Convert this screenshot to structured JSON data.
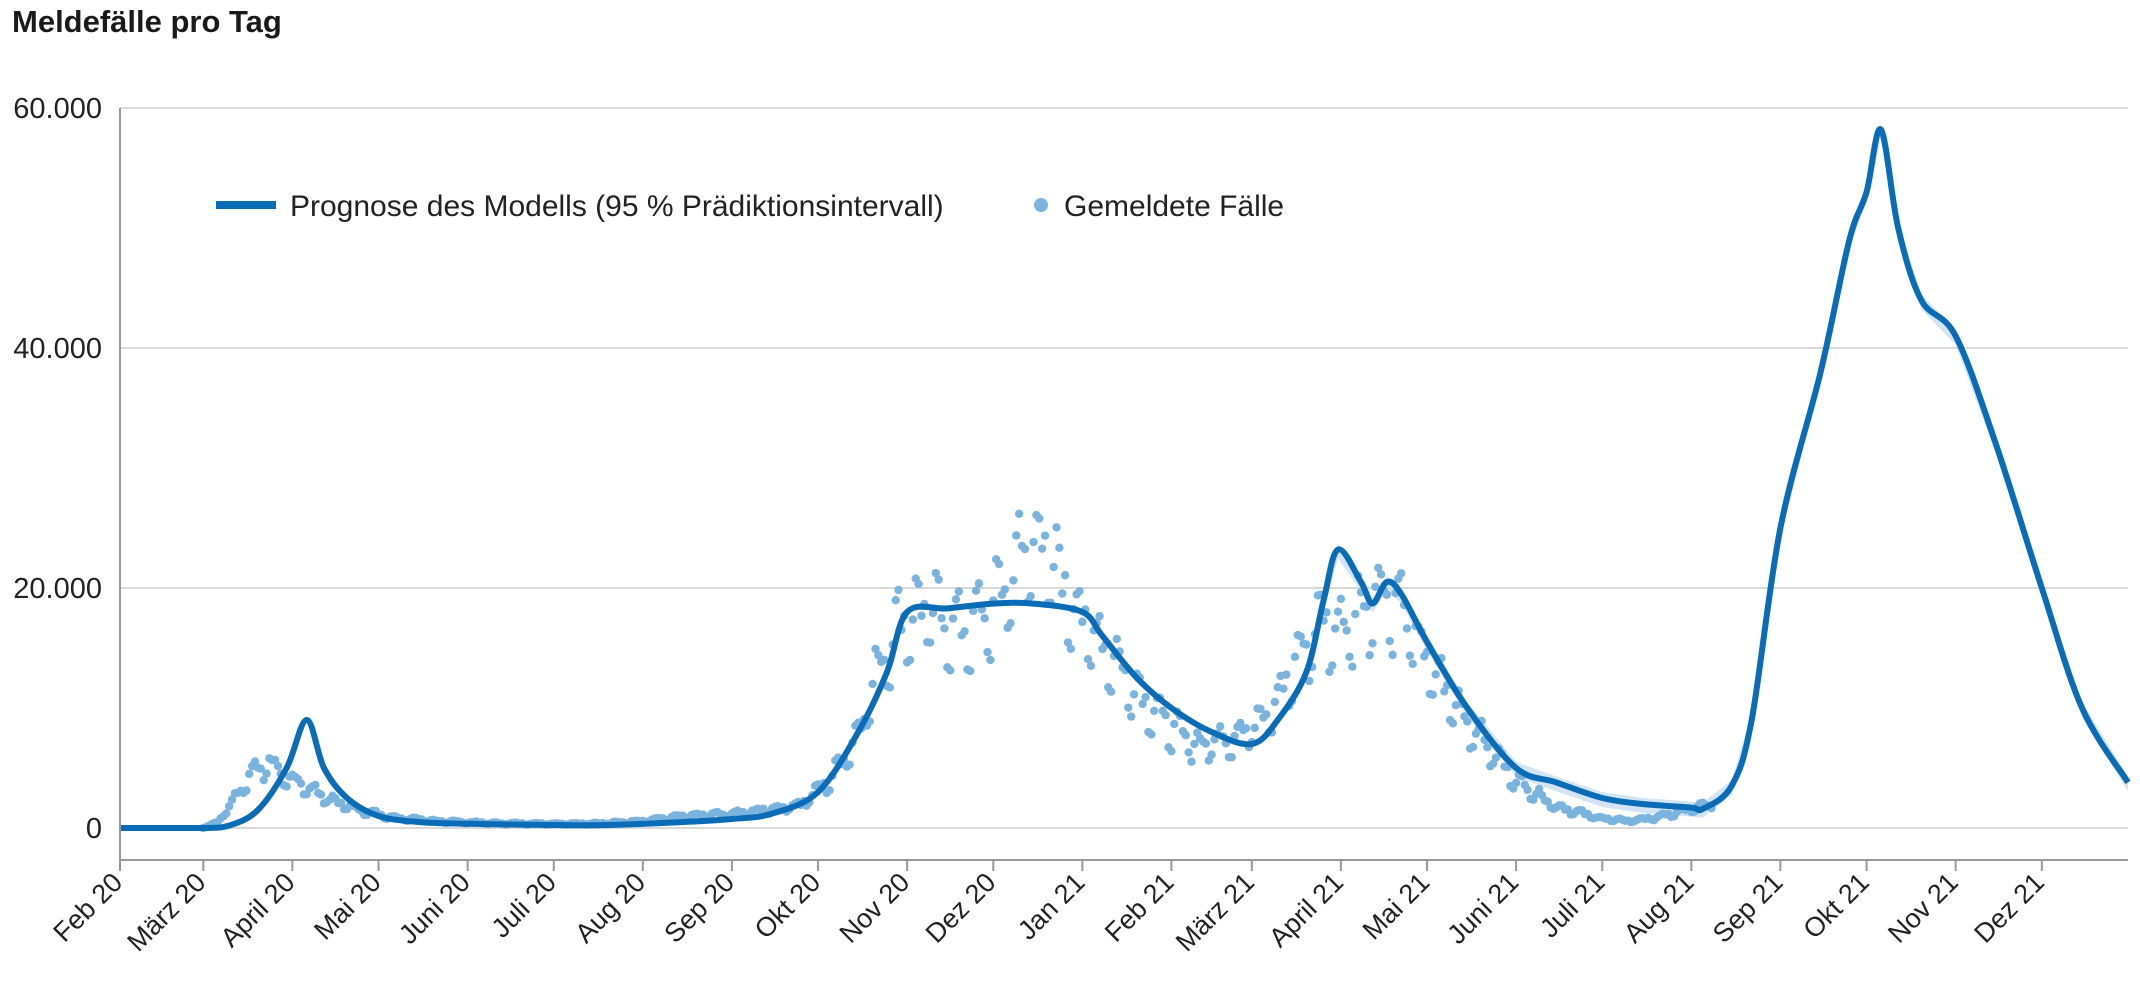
{
  "title": "Meldefälle pro Tag",
  "colors": {
    "model": "#0a6cb6",
    "reported": "#7ab3de",
    "band": "#c8dff1",
    "grid": "#d9d9d9"
  },
  "chart_data": {
    "type": "line",
    "title": "Meldefälle pro Tag",
    "ylim": [
      0,
      60000
    ],
    "y_ticks": [
      0,
      20000,
      40000,
      60000
    ],
    "y_tick_labels": [
      "0",
      "20.000",
      "40.000",
      "60.000"
    ],
    "x_tick_labels": [
      "Feb 20",
      "März 20",
      "April 20",
      "Mai 20",
      "Juni 20",
      "Juli 20",
      "Aug 20",
      "Sep 20",
      "Okt 20",
      "Nov 20",
      "Dez 20",
      "Jan 21",
      "Feb 21",
      "März 21",
      "April 21",
      "Mai 21",
      "Juni 21",
      "Juli 21",
      "Aug 21",
      "Sep 21",
      "Okt 21",
      "Nov 21",
      "Dez 21"
    ],
    "x_range": [
      "2020-02-01",
      "2021-12-31"
    ],
    "grid": "horizontal",
    "legend": "top-left",
    "legend_entries": [
      "Prognose des Modells (95 % Prädiktionsintervall)",
      "Gemeldete Fälle"
    ],
    "series": [
      {
        "name": "Prognose des Modells (95 % Prädiktionsintervall)",
        "kind": "line",
        "points": [
          [
            "2020-02-01",
            0
          ],
          [
            "2020-03-01",
            0
          ],
          [
            "2020-03-10",
            200
          ],
          [
            "2020-03-20",
            1500
          ],
          [
            "2020-03-30",
            5000
          ],
          [
            "2020-04-06",
            9000
          ],
          [
            "2020-04-12",
            5000
          ],
          [
            "2020-04-20",
            2500
          ],
          [
            "2020-05-01",
            1000
          ],
          [
            "2020-05-15",
            500
          ],
          [
            "2020-06-01",
            350
          ],
          [
            "2020-07-01",
            250
          ],
          [
            "2020-07-20",
            250
          ],
          [
            "2020-08-15",
            500
          ],
          [
            "2020-09-01",
            750
          ],
          [
            "2020-09-15",
            1200
          ],
          [
            "2020-10-01",
            3000
          ],
          [
            "2020-10-15",
            8000
          ],
          [
            "2020-10-25",
            13000
          ],
          [
            "2020-11-01",
            18000
          ],
          [
            "2020-11-15",
            18300
          ],
          [
            "2020-12-01",
            18700
          ],
          [
            "2020-12-15",
            18700
          ],
          [
            "2021-01-01",
            18000
          ],
          [
            "2021-01-08",
            16000
          ],
          [
            "2021-01-20",
            12500
          ],
          [
            "2021-02-01",
            10000
          ],
          [
            "2021-02-15",
            8000
          ],
          [
            "2021-03-01",
            7000
          ],
          [
            "2021-03-10",
            9000
          ],
          [
            "2021-03-20",
            13000
          ],
          [
            "2021-03-26",
            19000
          ],
          [
            "2021-03-31",
            23200
          ],
          [
            "2021-04-08",
            20500
          ],
          [
            "2021-04-12",
            18700
          ],
          [
            "2021-04-17",
            20500
          ],
          [
            "2021-04-22",
            19500
          ],
          [
            "2021-05-01",
            15500
          ],
          [
            "2021-05-15",
            10000
          ],
          [
            "2021-06-01",
            5000
          ],
          [
            "2021-06-15",
            3800
          ],
          [
            "2021-07-01",
            2500
          ],
          [
            "2021-07-15",
            2000
          ],
          [
            "2021-08-01",
            1700
          ],
          [
            "2021-08-05",
            1600
          ],
          [
            "2021-08-15",
            3500
          ],
          [
            "2021-08-22",
            9000
          ],
          [
            "2021-09-01",
            25000
          ],
          [
            "2021-09-15",
            38000
          ],
          [
            "2021-09-25",
            49000
          ],
          [
            "2021-10-01",
            53000
          ],
          [
            "2021-10-06",
            58200
          ],
          [
            "2021-10-12",
            50000
          ],
          [
            "2021-10-20",
            44000
          ],
          [
            "2021-11-01",
            41000
          ],
          [
            "2021-11-15",
            32000
          ],
          [
            "2021-12-01",
            20000
          ],
          [
            "2021-12-15",
            10000
          ],
          [
            "2021-12-31",
            3800
          ]
        ]
      },
      {
        "name": "Gemeldete Fälle",
        "kind": "scatter",
        "anchors": [
          [
            "2020-03-01",
            0
          ],
          [
            "2020-03-06",
            500
          ],
          [
            "2020-03-12",
            2500
          ],
          [
            "2020-03-18",
            4800
          ],
          [
            "2020-03-24",
            5500
          ],
          [
            "2020-03-30",
            4300
          ],
          [
            "2020-04-06",
            3500
          ],
          [
            "2020-04-15",
            2300
          ],
          [
            "2020-04-25",
            1500
          ],
          [
            "2020-05-05",
            900
          ],
          [
            "2020-05-20",
            600
          ],
          [
            "2020-06-10",
            400
          ],
          [
            "2020-07-01",
            350
          ],
          [
            "2020-07-20",
            400
          ],
          [
            "2020-08-01",
            600
          ],
          [
            "2020-08-15",
            1000
          ],
          [
            "2020-09-01",
            1200
          ],
          [
            "2020-09-15",
            1600
          ],
          [
            "2020-09-25",
            2000
          ],
          [
            "2020-10-05",
            4000
          ],
          [
            "2020-10-15",
            8000
          ],
          [
            "2020-10-22",
            13500
          ],
          [
            "2020-10-30",
            17500
          ],
          [
            "2020-11-08",
            18500
          ],
          [
            "2020-11-20",
            16500
          ],
          [
            "2020-12-01",
            18500
          ],
          [
            "2020-12-10",
            22500
          ],
          [
            "2020-12-16",
            24500
          ],
          [
            "2020-12-24",
            21000
          ],
          [
            "2021-01-01",
            17500
          ],
          [
            "2021-01-10",
            15000
          ],
          [
            "2021-01-20",
            11500
          ],
          [
            "2021-02-01",
            8500
          ],
          [
            "2021-02-10",
            7000
          ],
          [
            "2021-02-20",
            7500
          ],
          [
            "2021-03-01",
            8500
          ],
          [
            "2021-03-10",
            11000
          ],
          [
            "2021-03-18",
            14500
          ],
          [
            "2021-03-25",
            17500
          ],
          [
            "2021-04-01",
            16500
          ],
          [
            "2021-04-08",
            18500
          ],
          [
            "2021-04-15",
            20000
          ],
          [
            "2021-04-22",
            18500
          ],
          [
            "2021-05-01",
            14000
          ],
          [
            "2021-05-15",
            9000
          ],
          [
            "2021-06-01",
            4000
          ],
          [
            "2021-06-15",
            1800
          ],
          [
            "2021-07-01",
            800
          ],
          [
            "2021-07-10",
            600
          ],
          [
            "2021-07-20",
            900
          ],
          [
            "2021-08-01",
            1600
          ],
          [
            "2021-08-08",
            2000
          ]
        ]
      }
    ]
  },
  "legend": {
    "model_label": "Prognose des Modells (95 % Prädiktionsintervall)",
    "reported_label": "Gemeldete Fälle"
  }
}
